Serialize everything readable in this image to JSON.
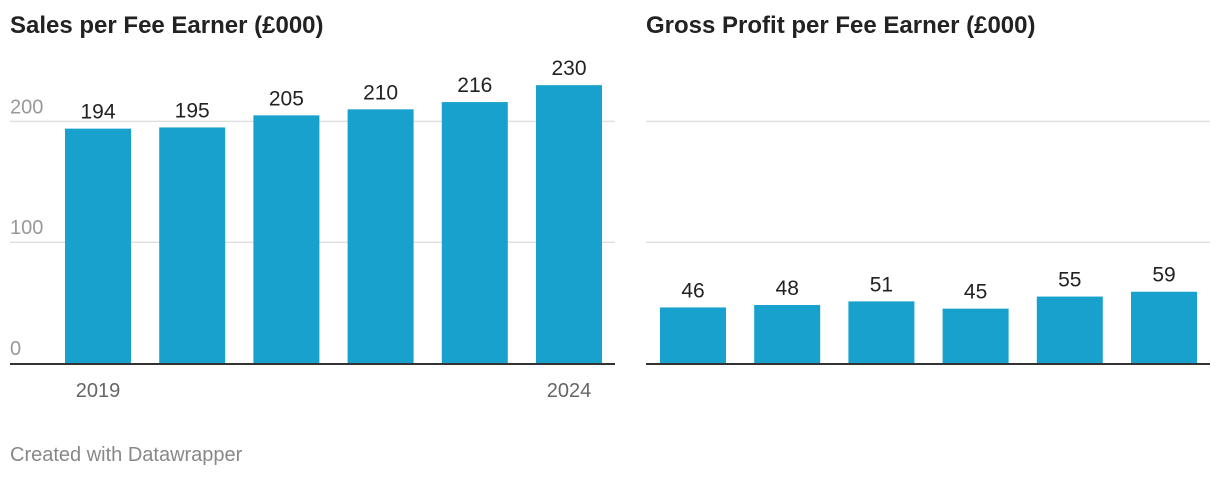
{
  "footer": "Created with Datawrapper",
  "colors": {
    "bar": "#18a1cd",
    "grid": "#e0e0e0",
    "axis": "#333333",
    "tick_text": "#999999",
    "label_text": "#222222"
  },
  "chart_data": [
    {
      "type": "bar",
      "title": "Sales per Fee Earner (£000)",
      "xlabel": "",
      "ylabel": "",
      "ylim": [
        0,
        230
      ],
      "yticks": [
        0,
        100,
        200
      ],
      "categories": [
        "2019",
        "",
        "",
        "",
        "",
        "2024"
      ],
      "values": [
        194,
        195,
        205,
        210,
        216,
        230
      ]
    },
    {
      "type": "bar",
      "title": "Gross Profit per Fee Earner (£000)",
      "xlabel": "",
      "ylabel": "",
      "ylim": [
        0,
        230
      ],
      "yticks": [
        0,
        100,
        200
      ],
      "categories": [
        "",
        "",
        "",
        "",
        "",
        ""
      ],
      "values": [
        46,
        48,
        51,
        45,
        55,
        59
      ]
    }
  ]
}
